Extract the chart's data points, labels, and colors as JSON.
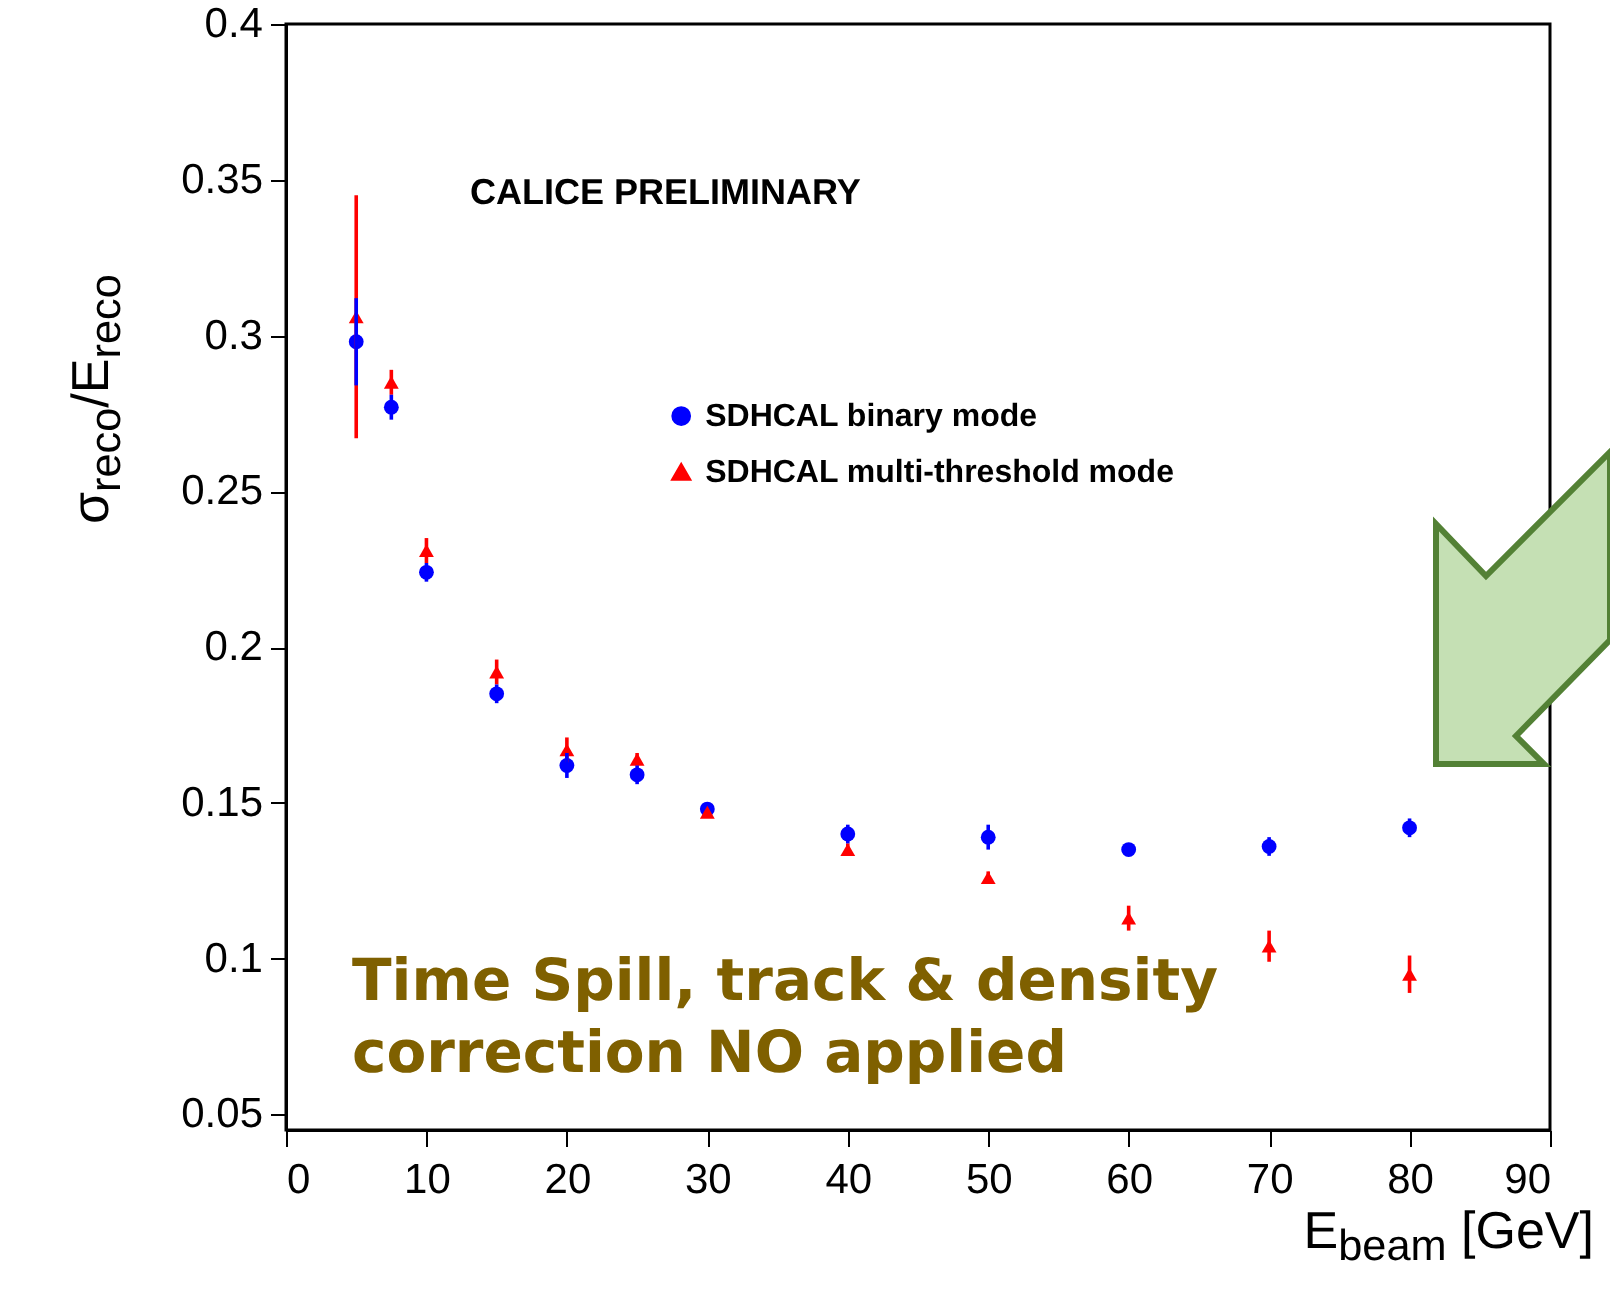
{
  "chart_data": {
    "type": "scatter",
    "xlabel": "E$_{beam}$ [GeV]",
    "ylabel": "σ$_{reco}$/E$_{reco}$",
    "x": [
      5,
      7.5,
      10,
      15,
      20,
      25,
      30,
      40,
      50,
      60,
      70,
      80
    ],
    "series": [
      {
        "name": "SDHCAL binary mode",
        "color": "#0000ff",
        "marker": "circle",
        "values": [
          0.298,
          0.277,
          0.224,
          0.185,
          0.162,
          0.159,
          0.148,
          0.14,
          0.139,
          0.135,
          0.136,
          0.142
        ],
        "errors": [
          0.014,
          0.004,
          0.003,
          0.003,
          0.004,
          0.003,
          null,
          0.003,
          0.004,
          null,
          0.003,
          0.003
        ]
      },
      {
        "name": "SDHCAL multi-threshold mode",
        "color": "#ff0000",
        "marker": "triangle",
        "values": [
          0.306,
          0.285,
          0.231,
          0.192,
          0.167,
          0.164,
          0.147,
          0.135,
          0.126,
          0.113,
          0.104,
          0.095
        ],
        "errors": [
          0.039,
          0.004,
          0.004,
          0.004,
          0.004,
          0.002,
          null,
          0.002,
          0.002,
          0.004,
          0.005,
          0.006
        ]
      }
    ],
    "xlim": [
      0,
      90
    ],
    "xticks": [
      0,
      10,
      20,
      30,
      40,
      50,
      60,
      70,
      80,
      90
    ],
    "ylim": [
      0.045,
      0.4
    ],
    "yticks": [
      0.05,
      0.1,
      0.15,
      0.2,
      0.25,
      0.3,
      0.35,
      0.4
    ],
    "grid": false,
    "legend": "top right",
    "annotations": [
      "CALICE PRELIMINARY",
      "Time Spill, track & density correction NO applied"
    ]
  }
}
